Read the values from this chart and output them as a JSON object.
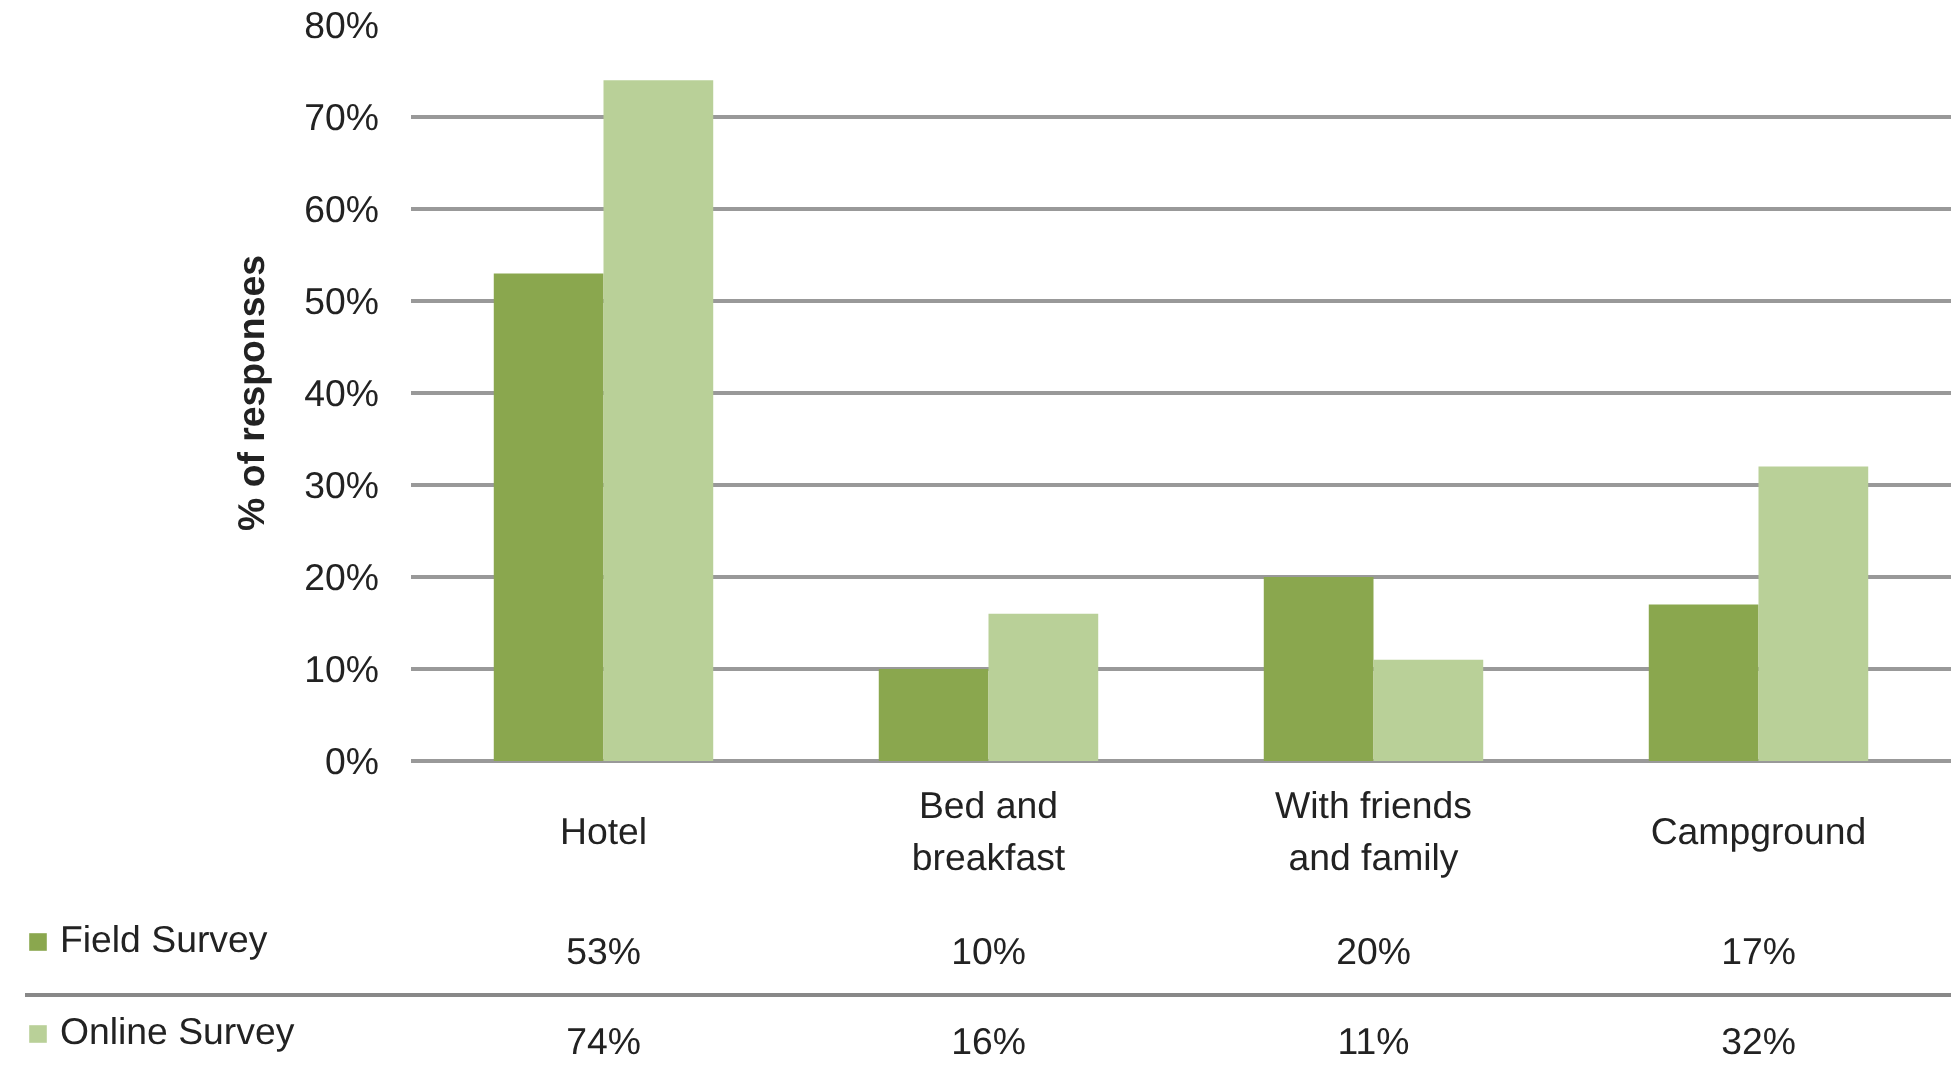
{
  "chart_data": {
    "type": "bar",
    "ylabel": "% of responses",
    "categories": [
      "Hotel",
      "Bed and breakfast",
      "With friends and family",
      "Campground"
    ],
    "series": [
      {
        "name": "Field Survey",
        "color": "#8aa74e",
        "values": [
          53,
          10,
          20,
          17
        ],
        "value_labels": [
          "53%",
          "10%",
          "20%",
          "17%"
        ]
      },
      {
        "name": "Online Survey",
        "color": "#b9d098",
        "values": [
          74,
          16,
          11,
          32
        ],
        "value_labels": [
          "74%",
          "16%",
          "11%",
          "32%"
        ]
      }
    ],
    "ylim": [
      0,
      80
    ],
    "yticks": [
      {
        "value": 0,
        "label": "0%"
      },
      {
        "value": 10,
        "label": "10%"
      },
      {
        "value": 20,
        "label": "20%"
      },
      {
        "value": 30,
        "label": "30%"
      },
      {
        "value": 40,
        "label": "40%"
      },
      {
        "value": 50,
        "label": "50%"
      },
      {
        "value": 60,
        "label": "60%"
      },
      {
        "value": 70,
        "label": "70%"
      },
      {
        "value": 80,
        "label": "80%"
      }
    ],
    "grid": "y",
    "legend": "bottom left"
  }
}
